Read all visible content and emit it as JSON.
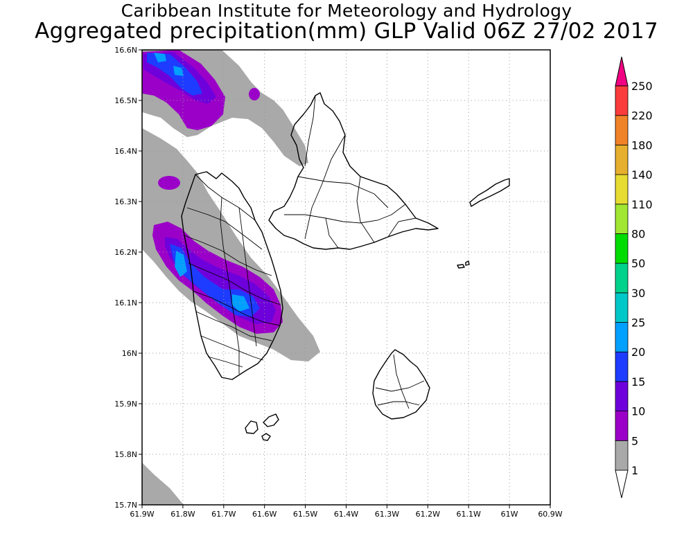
{
  "header": {
    "title": "Caribbean Institute for Meteorology and Hydrology",
    "subtitle": "Aggregated precipitation(mm) GLP Valid 06Z 27/02 2017"
  },
  "map": {
    "lon_range": [
      -61.9,
      -60.9
    ],
    "lat_range": [
      15.7,
      16.6
    ],
    "lon_ticks": [
      "61.9W",
      "61.8W",
      "61.7W",
      "61.6W",
      "61.5W",
      "61.4W",
      "61.3W",
      "61.2W",
      "61.1W",
      "61W",
      "60.9W"
    ],
    "lat_ticks": [
      "15.7N",
      "15.8N",
      "15.9N",
      "16N",
      "16.1N",
      "16.2N",
      "16.3N",
      "16.4N",
      "16.5N",
      "16.6N"
    ],
    "grid": true
  },
  "legend": {
    "units": "mm",
    "levels": [
      "1",
      "5",
      "10",
      "15",
      "20",
      "25",
      "30",
      "50",
      "80",
      "110",
      "140",
      "180",
      "220",
      "250"
    ],
    "colors": [
      "#a9a9a9",
      "#9b00c8",
      "#6e00dc",
      "#1e3cff",
      "#00a0ff",
      "#00c8c8",
      "#00d28c",
      "#00dc00",
      "#a0e632",
      "#e6dc32",
      "#e6af2d",
      "#f08228",
      "#fa3c3c",
      "#f00082"
    ]
  }
}
